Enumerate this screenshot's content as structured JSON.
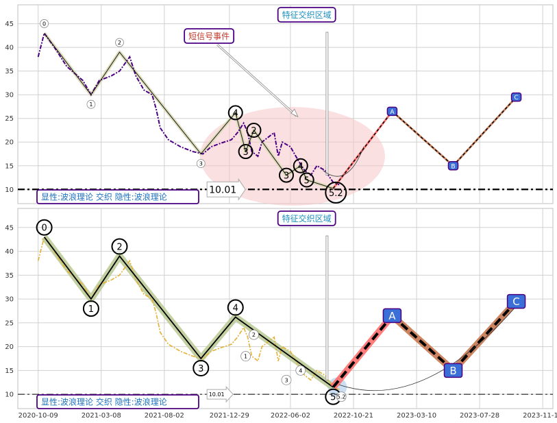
{
  "chart_data": [
    {
      "type": "line",
      "panel": "top",
      "title_box": "特征交织区域",
      "callout": "短信号事件",
      "price_tag": "10.01",
      "legend_text": "显性:波浪理论 交织 隐性:波浪理论",
      "yticks": [
        10,
        15,
        20,
        25,
        30,
        35,
        40,
        45
      ],
      "ylim": [
        7,
        49
      ],
      "grid": true,
      "horizontal_line": 10.0,
      "colors": {
        "price": "#4b0082",
        "wave": "#1a1a1a",
        "wave_fill": "#d8d8b0",
        "projection": "#ff6666",
        "abc_border": "#4b0082",
        "abc_fill": "#3a6fd8",
        "ellipse": "#f5c6c8"
      },
      "series": [
        {
          "name": "",
          "values": [
            [
              0,
              38
            ],
            [
              3,
              43
            ],
            [
              8,
              40
            ],
            [
              14,
              36
            ],
            [
              22,
              33
            ],
            [
              26,
              30
            ],
            [
              30,
              33
            ],
            [
              36,
              34
            ],
            [
              40,
              35
            ],
            [
              45,
              38
            ],
            [
              48,
              34
            ],
            [
              52,
              31
            ],
            [
              56,
              30
            ],
            [
              58,
              27
            ],
            [
              60,
              23
            ],
            [
              64,
              20.5
            ],
            [
              70,
              19
            ],
            [
              76,
              18
            ],
            [
              81,
              17.5
            ],
            [
              85,
              19
            ],
            [
              90,
              19.8
            ],
            [
              95,
              20.5
            ],
            [
              98,
              22
            ],
            [
              101,
              24
            ],
            [
              103,
              22
            ],
            [
              105,
              18
            ],
            [
              108,
              17
            ],
            [
              110,
              20
            ],
            [
              113,
              21
            ],
            [
              116,
              22
            ],
            [
              118,
              17
            ],
            [
              120,
              20
            ],
            [
              124,
              19
            ],
            [
              128,
              16
            ],
            [
              131,
              14
            ],
            [
              134,
              13
            ],
            [
              137,
              15
            ],
            [
              141,
              14
            ],
            [
              145,
              11.5
            ],
            [
              148,
              11
            ]
          ]
        }
      ],
      "waves": {
        "points": [
          [
            3,
            43
          ],
          [
            26,
            30
          ],
          [
            40,
            39
          ],
          [
            80,
            17.5
          ],
          [
            97,
            26.2
          ],
          [
            102,
            18
          ],
          [
            106,
            22.5
          ],
          [
            122,
            13
          ],
          [
            129,
            15
          ],
          [
            132,
            12
          ],
          [
            145,
            10.2
          ]
        ],
        "labels": [
          "0",
          "1",
          "2",
          "3",
          "4",
          "3",
          "2",
          "3",
          "4",
          "5",
          "5.2"
        ]
      },
      "abc": [
        {
          "label": "A",
          "x": 174,
          "y": 26.5
        },
        {
          "label": "B",
          "x": 204,
          "y": 15
        },
        {
          "label": "C",
          "x": 235,
          "y": 29.5
        }
      ]
    },
    {
      "type": "line",
      "panel": "bottom",
      "title_box": "特征交织区域",
      "price_tag": "10.01",
      "legend_text": "显性:波浪理论 交织 隐性:波浪理论",
      "xticks": [
        "2020-10-09",
        "2021-03-08",
        "2021-08-02",
        "2021-12-29",
        "2022-06-02",
        "2022-10-21",
        "2023-03-10",
        "2023-07-28",
        "2023-11-14"
      ],
      "yticks": [
        10,
        15,
        20,
        25,
        30,
        35,
        40,
        45
      ],
      "ylim": [
        7,
        49
      ],
      "grid": true,
      "horizontal_line": 10.0,
      "colors": {
        "price": "#e6b030",
        "wave": "#000000",
        "wave_fill": "#b8c890",
        "projection": "#ff6f6f",
        "abc_fill": "#3a6fd8",
        "abc_border": "#4b0082"
      },
      "series": [
        {
          "name": "",
          "values": [
            [
              0,
              38
            ],
            [
              3,
              43
            ],
            [
              8,
              40
            ],
            [
              14,
              36
            ],
            [
              22,
              33
            ],
            [
              26,
              30
            ],
            [
              30,
              33
            ],
            [
              36,
              34
            ],
            [
              40,
              35
            ],
            [
              45,
              38
            ],
            [
              48,
              34
            ],
            [
              52,
              31
            ],
            [
              56,
              30
            ],
            [
              58,
              27
            ],
            [
              60,
              23
            ],
            [
              64,
              20.5
            ],
            [
              70,
              19
            ],
            [
              76,
              18
            ],
            [
              81,
              17.5
            ],
            [
              85,
              19
            ],
            [
              90,
              19.8
            ],
            [
              95,
              20.5
            ],
            [
              98,
              22
            ],
            [
              101,
              24
            ],
            [
              103,
              22
            ],
            [
              105,
              18
            ],
            [
              108,
              17
            ],
            [
              110,
              20
            ],
            [
              113,
              21
            ],
            [
              116,
              22
            ],
            [
              118,
              17
            ],
            [
              120,
              20
            ],
            [
              124,
              19
            ],
            [
              128,
              16
            ],
            [
              131,
              14
            ],
            [
              134,
              13
            ],
            [
              137,
              15
            ],
            [
              141,
              14
            ],
            [
              145,
              11.5
            ],
            [
              148,
              11
            ]
          ]
        }
      ],
      "waves": {
        "points": [
          [
            3,
            43
          ],
          [
            26,
            30
          ],
          [
            40,
            39
          ],
          [
            80,
            17.5
          ],
          [
            97,
            26.2
          ],
          [
            145,
            11.5
          ]
        ],
        "labels": [
          "0",
          "1",
          "2",
          "3",
          "4",
          "5"
        ]
      },
      "minor_labels": [
        {
          "label": "2",
          "x": 106,
          "y": 22.5
        },
        {
          "label": "1",
          "x": 102,
          "y": 18
        },
        {
          "label": "3",
          "x": 122,
          "y": 13
        },
        {
          "label": "4",
          "x": 129,
          "y": 15
        },
        {
          "label": "5.2",
          "x": 149,
          "y": 9.5
        }
      ],
      "abc": [
        {
          "label": "A",
          "x": 174,
          "y": 26.5
        },
        {
          "label": "B",
          "x": 204,
          "y": 15
        },
        {
          "label": "C",
          "x": 235,
          "y": 29.5
        }
      ]
    }
  ]
}
